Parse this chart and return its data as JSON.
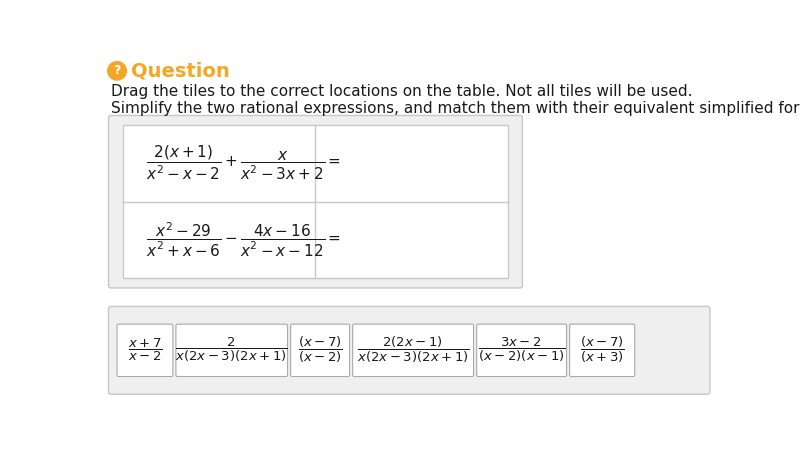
{
  "bg_color": "#ffffff",
  "header_icon_color": "#f5a623",
  "header_text": "Question",
  "header_fontsize": 14,
  "instruction1": "Drag the tiles to the correct locations on the table. Not all tiles will be used.",
  "instruction2": "Simplify the two rational expressions, and match them with their equivalent simplified forms.",
  "body_fontsize": 11,
  "expr1": "$\\dfrac{2(x+1)}{x^2-x-2}+\\dfrac{x}{x^2-3x+2}=$",
  "expr2": "$\\dfrac{x^2-29}{x^2+x-6}-\\dfrac{4x-16}{x^2-x-12}=$",
  "tiles": [
    {
      "expr": "$\\dfrac{x+7}{x-2}$",
      "wide": false
    },
    {
      "expr": "$\\dfrac{2}{x(2x-3)(2x+1)}$",
      "wide": true
    },
    {
      "expr": "$\\dfrac{(x-7)}{(x-2)}$",
      "wide": false
    },
    {
      "expr": "$\\dfrac{2(2x-1)}{x(2x-3)(2x+1)}$",
      "wide": true
    },
    {
      "expr": "$\\dfrac{3x-2}{(x-2)(x-1)}$",
      "wide": false
    },
    {
      "expr": "$\\dfrac{(x-7)}{(x+3)}$",
      "wide": false
    }
  ]
}
